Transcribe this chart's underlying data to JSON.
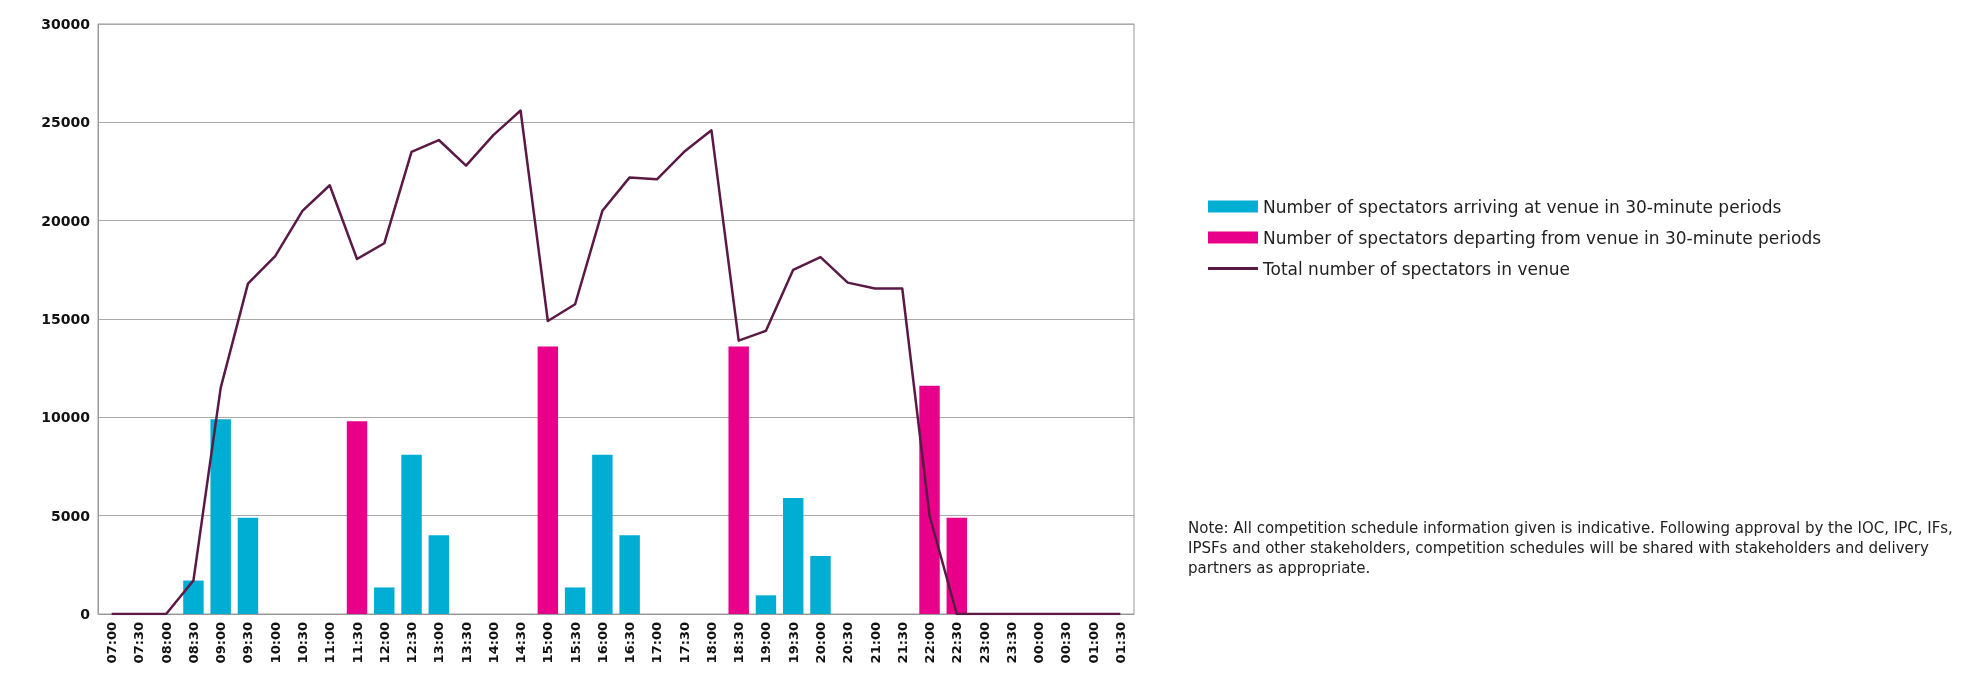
{
  "chart_data": {
    "type": "bar",
    "categories": [
      "07:00",
      "07:30",
      "08:00",
      "08:30",
      "09:00",
      "09:30",
      "10:00",
      "10:30",
      "11:00",
      "11:30",
      "12:00",
      "12:30",
      "13:00",
      "13:30",
      "14:00",
      "14:30",
      "15:00",
      "15:30",
      "16:00",
      "16:30",
      "17:00",
      "17:30",
      "18:00",
      "18:30",
      "19:00",
      "19:30",
      "20:00",
      "20:30",
      "21:00",
      "21:30",
      "22:00",
      "22:30",
      "23:00",
      "23:30",
      "00:00",
      "00:30",
      "01:00",
      "01:30"
    ],
    "series": [
      {
        "name": "Number of spectators arriving at venue in 30-minute periods",
        "type": "bar",
        "color": "#00aed4",
        "values": [
          null,
          null,
          null,
          1700,
          9900,
          4900,
          null,
          null,
          null,
          null,
          1350,
          8100,
          4000,
          null,
          null,
          null,
          null,
          1350,
          8100,
          4000,
          null,
          null,
          null,
          null,
          950,
          5900,
          2950,
          null,
          null,
          null,
          null,
          null,
          null,
          null,
          null,
          null,
          null,
          null
        ]
      },
      {
        "name": "Number of spectators departing from venue in 30-minute periods",
        "type": "bar",
        "color": "#e8008a",
        "values": [
          null,
          null,
          null,
          null,
          null,
          null,
          null,
          null,
          null,
          9800,
          null,
          null,
          null,
          null,
          null,
          null,
          13600,
          null,
          null,
          null,
          null,
          null,
          null,
          13600,
          null,
          null,
          null,
          null,
          null,
          null,
          11600,
          4900,
          null,
          null,
          null,
          null,
          null,
          null
        ]
      },
      {
        "name": "Total number of spectators in venue",
        "type": "line",
        "color": "#5a1a45",
        "values": [
          0,
          0,
          0,
          1700,
          11500,
          16800,
          18200,
          20500,
          21800,
          18050,
          18850,
          23500,
          24100,
          22800,
          24350,
          25600,
          14900,
          15750,
          20500,
          22200,
          22100,
          23500,
          24600,
          13900,
          14400,
          17500,
          18150,
          16850,
          16550,
          16550,
          5000,
          0,
          0,
          0,
          0,
          0,
          0,
          0
        ]
      }
    ],
    "ylim": [
      0,
      30000
    ],
    "yticks": [
      0,
      5000,
      10000,
      15000,
      20000,
      25000,
      30000
    ],
    "grid": "y",
    "legend": "right",
    "marker": "none",
    "line_style": "solid",
    "annotations": [
      "Note: All competition schedule information given is indicative. Following approval by the IOC, IPC, IFs, IPSFs and other stakeholders, competition schedules will be shared with stakeholders and delivery partners as appropriate."
    ]
  }
}
